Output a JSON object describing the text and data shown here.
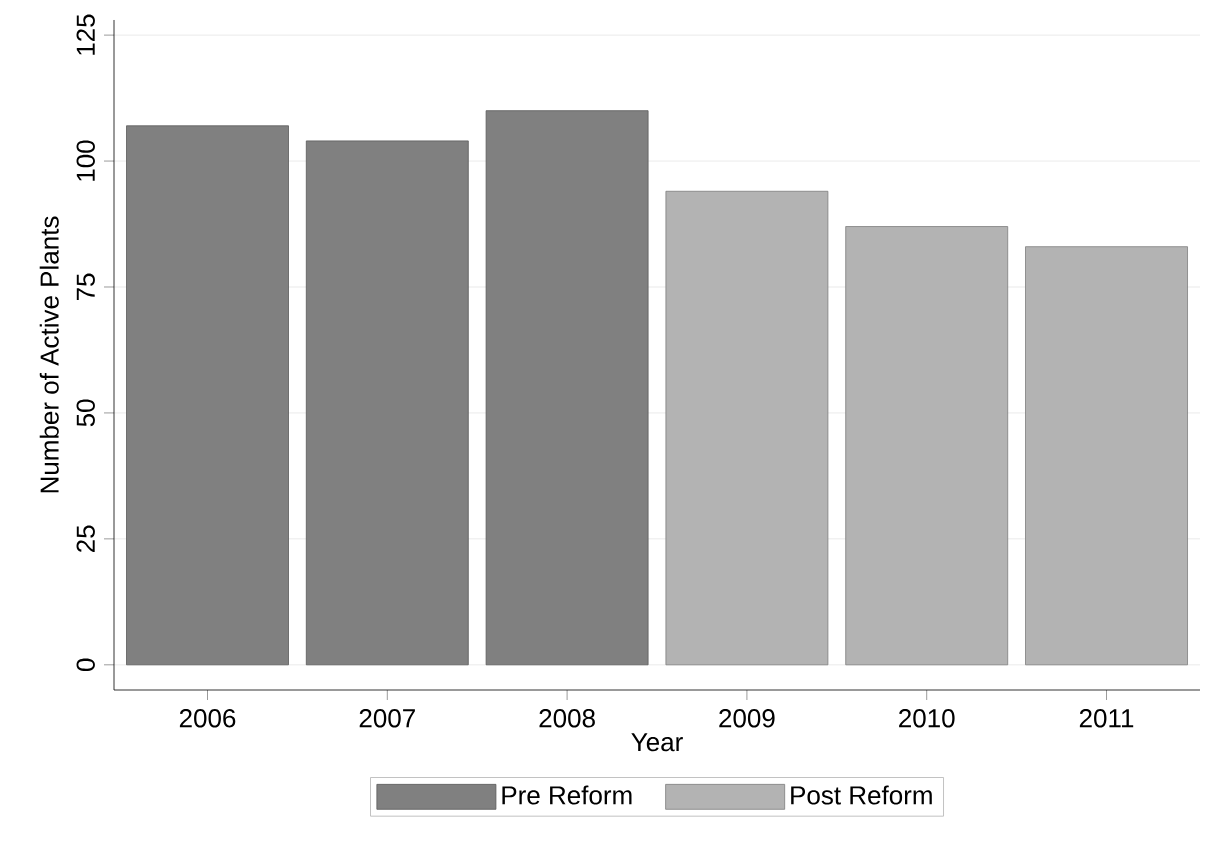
{
  "chart_data": {
    "type": "bar",
    "xlabel": "Year",
    "ylabel": "Number of Active Plants",
    "categories": [
      "2006",
      "2007",
      "2008",
      "2009",
      "2010",
      "2011"
    ],
    "series": [
      {
        "name": "Pre Reform",
        "color": "#808080",
        "values": [
          107,
          104,
          110,
          null,
          null,
          null
        ]
      },
      {
        "name": "Post Reform",
        "color": "#b3b3b3",
        "values": [
          null,
          null,
          null,
          94,
          87,
          83
        ]
      }
    ],
    "ylim": [
      -5,
      128
    ],
    "yticks": [
      0,
      25,
      50,
      75,
      100,
      125
    ],
    "grid": "y",
    "legend": "bottom"
  }
}
